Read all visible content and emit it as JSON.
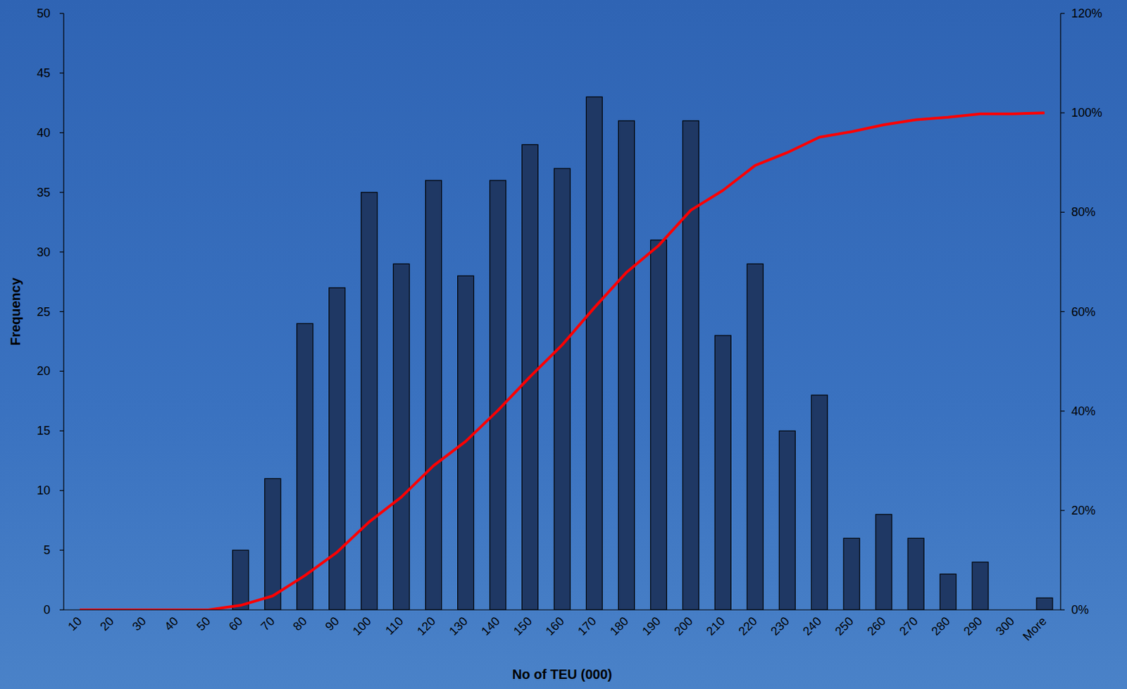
{
  "chart_data": {
    "type": "bar",
    "x_label": "No of TEU (000)",
    "y_label": "Frequency",
    "categories": [
      "10",
      "20",
      "30",
      "40",
      "50",
      "60",
      "70",
      "80",
      "90",
      "100",
      "110",
      "120",
      "130",
      "140",
      "150",
      "160",
      "170",
      "180",
      "190",
      "200",
      "210",
      "220",
      "230",
      "240",
      "250",
      "260",
      "270",
      "280",
      "290",
      "300",
      "More"
    ],
    "series": [
      {
        "type": "bar",
        "color": "#1f3864",
        "values": [
          0,
          0,
          0,
          0,
          0,
          5,
          11,
          24,
          27,
          35,
          29,
          36,
          28,
          36,
          39,
          37,
          43,
          41,
          31,
          41,
          23,
          29,
          15,
          18,
          6,
          8,
          6,
          3,
          4,
          0,
          1
        ]
      },
      {
        "type": "line",
        "axis": "y2",
        "color": "#ff0000",
        "values": [
          0,
          0,
          0,
          0,
          0,
          0.9,
          2.8,
          6.9,
          11.6,
          17.7,
          22.7,
          29.0,
          33.9,
          40.1,
          46.9,
          53.3,
          60.8,
          67.9,
          73.3,
          80.4,
          84.4,
          89.4,
          92.0,
          95.1,
          96.2,
          97.6,
          98.6,
          99.1,
          99.8,
          99.8,
          100
        ]
      }
    ],
    "ylim": [
      0,
      50
    ],
    "yticks": [
      0,
      5,
      10,
      15,
      20,
      25,
      30,
      35,
      40,
      45,
      50
    ],
    "y2lim": [
      0,
      120
    ],
    "y2ticks": [
      {
        "value": 0,
        "label": "0%"
      },
      {
        "value": 20,
        "label": "20%"
      },
      {
        "value": 40,
        "label": "40%"
      },
      {
        "value": 60,
        "label": "60%"
      },
      {
        "value": 80,
        "label": "80%"
      },
      {
        "value": 100,
        "label": "100%"
      },
      {
        "value": 120,
        "label": "120%"
      }
    ],
    "grid": false
  }
}
